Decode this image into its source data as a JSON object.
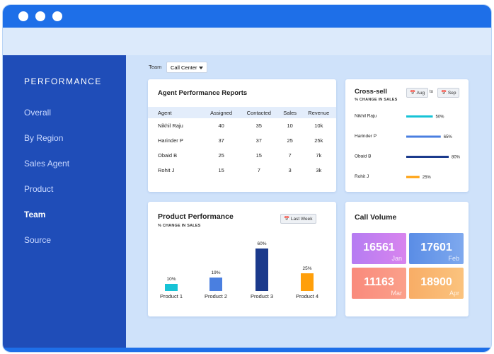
{
  "sidebar": {
    "title": "PERFORMANCE",
    "items": [
      "Overall",
      "By Region",
      "Sales Agent",
      "Product",
      "Team",
      "Source"
    ],
    "active": "Team"
  },
  "filter": {
    "label": "Team",
    "value": "Call Center"
  },
  "agent_report": {
    "title": "Agent Performance Reports",
    "columns": [
      "Agent",
      "Assigned",
      "Contacted",
      "Sales",
      "Revenue"
    ],
    "rows": [
      [
        "Nikhil Raju",
        40,
        35,
        10,
        "10k"
      ],
      [
        "Harinder P",
        37,
        37,
        25,
        "25k"
      ],
      [
        "Obaid B",
        25,
        15,
        7,
        "7k"
      ],
      [
        "Rohit J",
        15,
        7,
        3,
        "3k"
      ]
    ]
  },
  "cross_sell": {
    "title": "Cross-sell",
    "subtitle": "% CHANGE IN SALES",
    "from": "Aug",
    "to_label": "to",
    "to": "Sep"
  },
  "product_performance": {
    "title": "Product Performance",
    "subtitle": "% CHANGE IN SALES",
    "button": "Last Week"
  },
  "call_volume": {
    "title": "Call Volume",
    "tiles": [
      {
        "value": 16561,
        "label": "Jan"
      },
      {
        "value": 17601,
        "label": "Feb"
      },
      {
        "value": 11163,
        "label": "Mar"
      },
      {
        "value": 18900,
        "label": "Apr"
      }
    ]
  },
  "chart_data": [
    {
      "type": "hbar",
      "categories": [
        "Nikhil Raju",
        "Harinder P",
        "Obaid B",
        "Rohit J"
      ],
      "values": [
        50,
        65,
        80,
        25
      ],
      "value_labels": [
        "50%",
        "65%",
        "80%",
        "25%"
      ],
      "colors": [
        "#17c3d6",
        "#4a7fe0",
        "#1b3a8c",
        "#ff9f0a"
      ],
      "xlim": [
        0,
        100
      ]
    },
    {
      "type": "bar",
      "categories": [
        "Product 1",
        "Product 2",
        "Product 3",
        "Product 4"
      ],
      "values": [
        10,
        19,
        60,
        25
      ],
      "value_labels": [
        "10%",
        "19%",
        "60%",
        "25%"
      ],
      "colors": [
        "#17c3d6",
        "#4a7fe0",
        "#1b3a8c",
        "#ff9f0a"
      ],
      "ylim": [
        0,
        60
      ]
    }
  ]
}
